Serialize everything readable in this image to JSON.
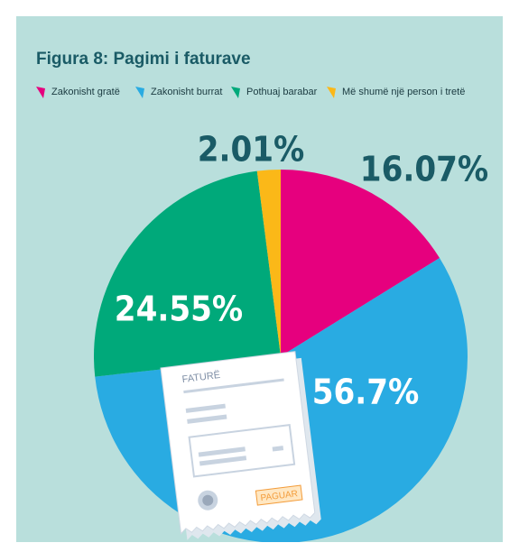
{
  "chart_data": {
    "type": "pie",
    "title": "Figura 8: Pagimi i faturave",
    "categories": [
      "Zakonisht gratë",
      "Zakonisht burrat",
      "Pothuaj barabar",
      "Më shumë një person i tretë"
    ],
    "values": [
      16.07,
      56.7,
      24.55,
      2.01
    ],
    "value_labels": [
      "16.07%",
      "56.7%",
      "24.55%",
      "2.01%"
    ],
    "colors": [
      "#e6007e",
      "#29abe2",
      "#00a97a",
      "#fbb818"
    ],
    "legend": "top"
  },
  "illustration": {
    "header": "FATURË",
    "stamp": "PAGUAR"
  }
}
